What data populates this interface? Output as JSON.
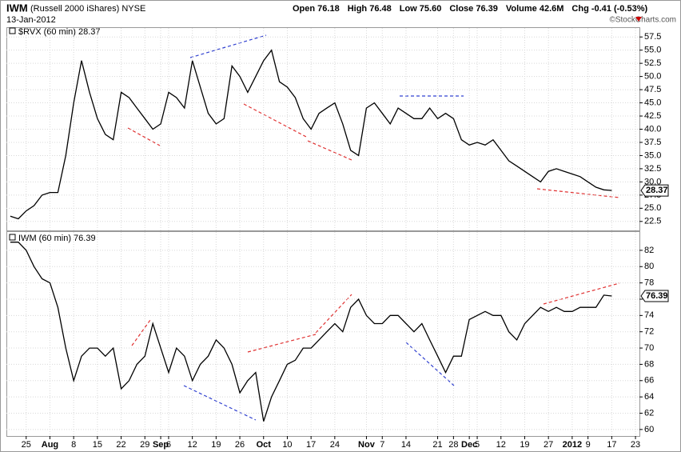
{
  "header": {
    "symbol": "IWM",
    "name": "(Russell 2000 iShares) NYSE",
    "date": "13-Jan-2012",
    "quote": [
      "Open 76.18",
      "High 76.48",
      "Low 75.60",
      "Close 76.39",
      "Volume 42.6M",
      "Chg -0.41 (-0.53%)"
    ],
    "credit": "©StockCharts.com"
  },
  "chart_data": [
    {
      "type": "line",
      "title": "$RVX (60 min) 28.37",
      "color": "#000000",
      "values": [
        23.5,
        23,
        24.5,
        25.5,
        27.5,
        28,
        28,
        35,
        45,
        53,
        47,
        42,
        39,
        38,
        47,
        46,
        44,
        42,
        40,
        41,
        47,
        46,
        44,
        53,
        48,
        43,
        41,
        42,
        52,
        50,
        47,
        50,
        53,
        55,
        49,
        48,
        46,
        42,
        40,
        43,
        44,
        45,
        41,
        36,
        35,
        44,
        45,
        43,
        41,
        44,
        43,
        42,
        42,
        44,
        42,
        43,
        42,
        38,
        37,
        37.5,
        37,
        38,
        36,
        34,
        33,
        32,
        31,
        30,
        32,
        32.5,
        32,
        31.5,
        31,
        30,
        29,
        28.5,
        28.37,
        null,
        null,
        null
      ],
      "ylim": [
        20.8,
        59.2
      ],
      "yticks": [
        22.5,
        {
          "value": 25,
          "label": "25.0"
        },
        27.5,
        {
          "value": 30,
          "label": "30.0"
        },
        32.5,
        {
          "value": 35,
          "label": "35.0"
        },
        37.5,
        {
          "value": 40,
          "label": "40.0"
        },
        42.5,
        {
          "value": 45,
          "label": "45.0"
        },
        47.5,
        {
          "value": 50,
          "label": "50.0"
        },
        52.5,
        {
          "value": 55,
          "label": "55.0"
        },
        57.5
      ],
      "grid": true
    },
    {
      "type": "line",
      "title": "IWM (60 min) 76.39",
      "color": "#000000",
      "categories": [
        null,
        null,
        "25",
        null,
        null,
        "Aug",
        null,
        null,
        "8",
        null,
        null,
        "15",
        null,
        null,
        "22",
        null,
        null,
        "29",
        null,
        "Sep",
        "6",
        null,
        null,
        "12",
        null,
        null,
        "19",
        null,
        null,
        "26",
        null,
        null,
        "Oct",
        null,
        null,
        "10",
        null,
        null,
        "17",
        null,
        null,
        "24",
        null,
        null,
        null,
        "Nov",
        null,
        "7",
        null,
        null,
        "14",
        null,
        null,
        null,
        "21",
        null,
        "28",
        null,
        "Dec",
        "5",
        null,
        null,
        "12",
        null,
        null,
        "19",
        null,
        null,
        "27",
        null,
        null,
        "2012",
        null,
        "9",
        null,
        null,
        "17",
        null,
        null,
        "23"
      ],
      "values": [
        83,
        83,
        82,
        80,
        78.5,
        78,
        75,
        70,
        66,
        69,
        70,
        70,
        69,
        70,
        65,
        66,
        68,
        69,
        73,
        70,
        67,
        70,
        69,
        66,
        68,
        69,
        71,
        70,
        68,
        64.5,
        66,
        67,
        61,
        64,
        66,
        68,
        68.5,
        70,
        70,
        71,
        72,
        73,
        72,
        75,
        76,
        74,
        73,
        73,
        74,
        74,
        73,
        72,
        73,
        71,
        69,
        67,
        69,
        69,
        73.5,
        74,
        74.5,
        74,
        74,
        72,
        71,
        73,
        74,
        75,
        74.5,
        75,
        74.5,
        74.5,
        75,
        75,
        75,
        76.5,
        76.39,
        null,
        null,
        null
      ],
      "ylim": [
        59.2,
        84.25
      ],
      "yticks": [
        60,
        62,
        64,
        66,
        68,
        70,
        72,
        74,
        76,
        78,
        80,
        82
      ],
      "grid": true
    }
  ]
}
